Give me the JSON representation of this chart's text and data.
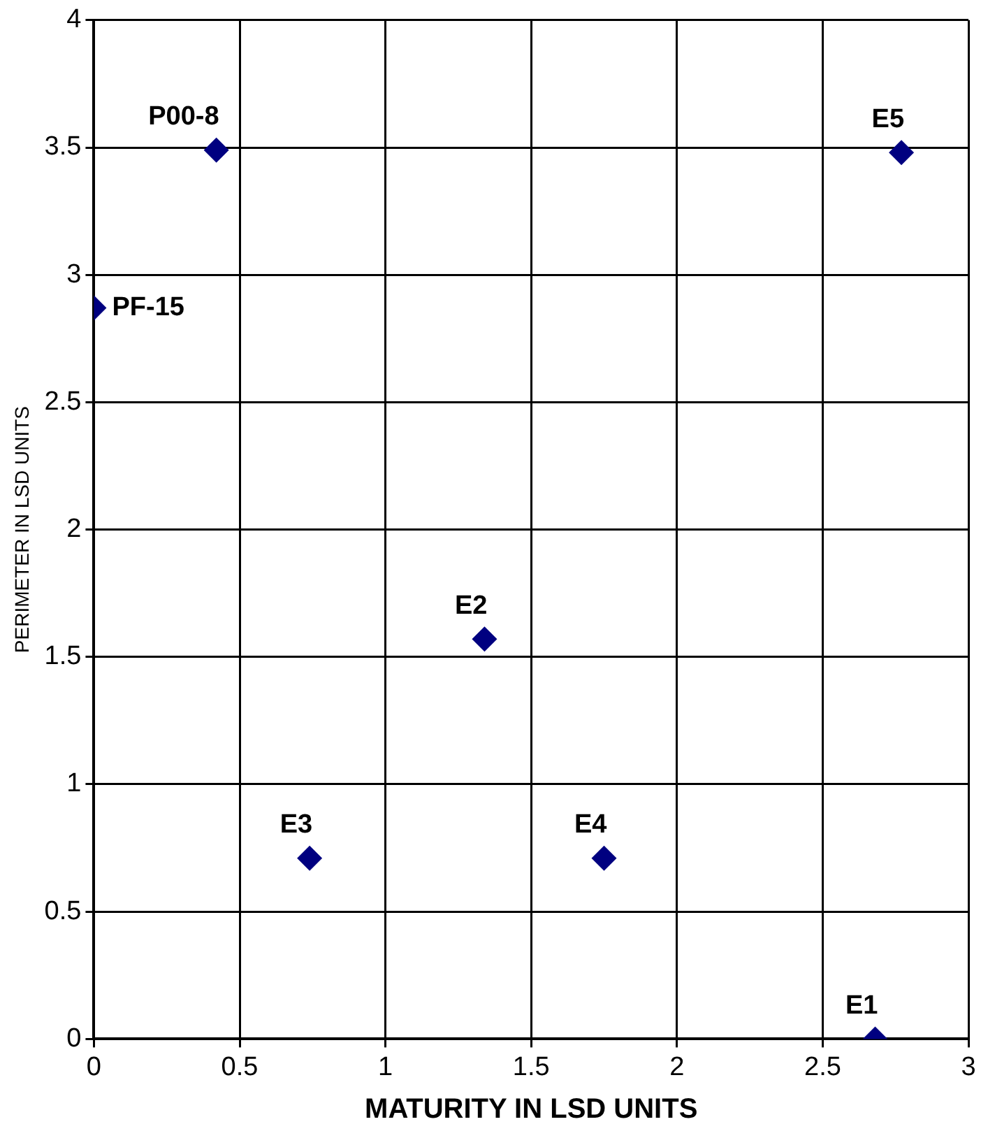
{
  "chart_data": {
    "type": "scatter",
    "xlabel": "MATURITY IN LSD UNITS",
    "ylabel": "PERIMETER IN LSD UNITS",
    "x": [
      0.42,
      0,
      2.77,
      1.34,
      0.74,
      1.75,
      2.68
    ],
    "series": [
      {
        "color": "#000080",
        "values": [
          3.49,
          2.87,
          3.48,
          1.57,
          0.71,
          0.71,
          0
        ]
      }
    ],
    "annotations": [
      {
        "text": "P00-8",
        "x": 0.42,
        "y": 3.49
      },
      {
        "text": "PF-15",
        "x": 0,
        "y": 2.87
      },
      {
        "text": "E5",
        "x": 2.77,
        "y": 3.48
      },
      {
        "text": "E2",
        "x": 1.34,
        "y": 1.57
      },
      {
        "text": "E3",
        "x": 0.74,
        "y": 0.71
      },
      {
        "text": "E4",
        "x": 1.75,
        "y": 0.71
      },
      {
        "text": "E1",
        "x": 2.68,
        "y": 0
      }
    ],
    "xlim": [
      0,
      3
    ],
    "xticks": [
      0,
      0.5,
      1,
      1.5,
      2,
      2.5,
      3
    ],
    "ylim": [
      0,
      4
    ],
    "yticks": [
      0,
      0.5,
      1,
      1.5,
      2,
      2.5,
      3,
      3.5,
      4
    ],
    "grid": true,
    "legend": false,
    "marker": "diamond"
  }
}
